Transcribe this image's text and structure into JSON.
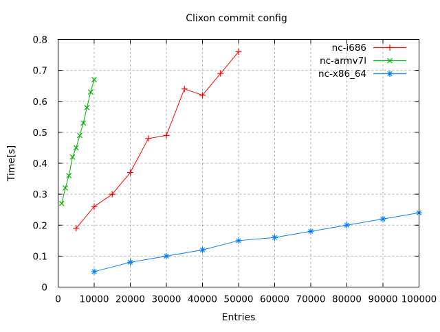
{
  "chart_data": {
    "type": "line",
    "title": "Clixon commit config",
    "xlabel": "Entries",
    "ylabel": "Time[s]",
    "xlim": [
      0,
      100000
    ],
    "ylim": [
      0,
      0.8
    ],
    "xticks": [
      0,
      10000,
      20000,
      30000,
      40000,
      50000,
      60000,
      70000,
      80000,
      90000,
      100000
    ],
    "xtick_labels": [
      "0",
      "10000",
      "20000",
      "30000",
      "40000",
      "50000",
      "60000",
      "70000",
      "80000",
      "90000",
      "100000"
    ],
    "yticks": [
      0,
      0.1,
      0.2,
      0.3,
      0.4,
      0.5,
      0.6,
      0.7,
      0.8
    ],
    "ytick_labels": [
      "0",
      "0.1",
      "0.2",
      "0.3",
      "0.4",
      "0.5",
      "0.6",
      "0.7",
      "0.8"
    ],
    "grid": true,
    "grid_color": "#b0b0b0",
    "border_color": "#000000",
    "background_color": "#ffffff",
    "legend_position": "top-right-inside",
    "series": [
      {
        "name": "nc-i686",
        "color": "#ff0000",
        "marker": "plus",
        "x": [
          5000,
          10000,
          15000,
          20000,
          25000,
          30000,
          35000,
          40000,
          45000,
          50000
        ],
        "y": [
          0.19,
          0.26,
          0.3,
          0.37,
          0.48,
          0.49,
          0.64,
          0.62,
          0.69,
          0.76
        ]
      },
      {
        "name": "nc-armv7l",
        "color": "#00b000",
        "marker": "cross",
        "x": [
          1000,
          2000,
          3000,
          4000,
          5000,
          6000,
          7000,
          8000,
          9000,
          10000
        ],
        "y": [
          0.27,
          0.32,
          0.36,
          0.42,
          0.45,
          0.49,
          0.53,
          0.58,
          0.63,
          0.67
        ]
      },
      {
        "name": "nc-x86_64",
        "color": "#0080ff",
        "marker": "star",
        "x": [
          10000,
          20000,
          30000,
          40000,
          50000,
          60000,
          70000,
          80000,
          90000,
          100000
        ],
        "y": [
          0.05,
          0.08,
          0.1,
          0.12,
          0.15,
          0.16,
          0.18,
          0.2,
          0.22,
          0.24
        ]
      }
    ]
  }
}
